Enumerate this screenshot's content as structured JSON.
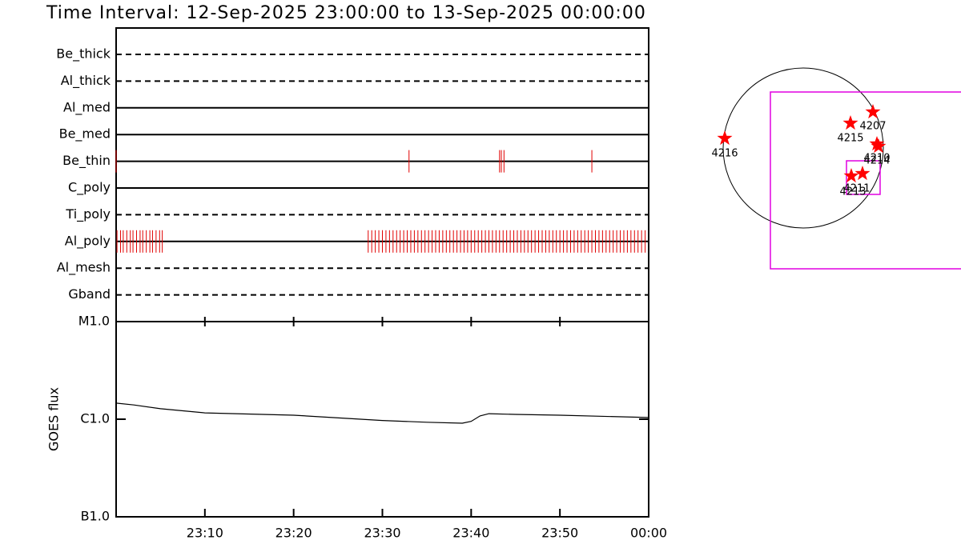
{
  "chart_data": [
    {
      "type": "timeline",
      "title": "Time Interval: 12-Sep-2025 23:00:00 to 13-Sep-2025 00:00:00",
      "xlim": [
        0,
        60
      ],
      "color": "#e00000",
      "rows": [
        {
          "name": "Be_thick",
          "style": "dashed",
          "times": []
        },
        {
          "name": "Al_thick",
          "style": "dashed",
          "times": []
        },
        {
          "name": "Al_med",
          "style": "solid",
          "times": []
        },
        {
          "name": "Be_med",
          "style": "solid",
          "times": []
        },
        {
          "name": "Be_thin",
          "style": "solid",
          "times": [
            0.0,
            33.0,
            43.2,
            43.4,
            43.7,
            53.6
          ]
        },
        {
          "name": "C_poly",
          "style": "solid",
          "times": []
        },
        {
          "name": "Ti_poly",
          "style": "dashed",
          "times": []
        },
        {
          "name": "Al_poly",
          "style": "solid",
          "times": [
            0.1,
            0.5,
            0.8,
            1.2,
            1.6,
            1.9,
            2.3,
            2.7,
            3.0,
            3.4,
            3.8,
            4.1,
            4.5,
            4.9,
            5.2,
            28.4,
            28.8,
            29.2,
            29.6,
            30.0,
            30.4,
            30.8,
            31.2,
            31.6,
            32.0,
            32.4,
            32.8,
            33.2,
            33.6,
            34.0,
            34.4,
            34.8,
            35.2,
            35.6,
            36.0,
            36.4,
            36.8,
            37.2,
            37.6,
            38.0,
            38.4,
            38.8,
            39.2,
            39.6,
            40.0,
            40.4,
            40.8,
            41.2,
            41.6,
            42.0,
            42.4,
            42.8,
            43.2,
            43.6,
            44.0,
            44.4,
            44.8,
            45.2,
            45.6,
            46.0,
            46.4,
            46.8,
            47.2,
            47.6,
            48.0,
            48.4,
            48.8,
            49.2,
            49.6,
            50.0,
            50.4,
            50.8,
            51.2,
            51.6,
            52.0,
            52.4,
            52.8,
            53.2,
            53.6,
            54.0,
            54.4,
            54.8,
            55.2,
            55.6,
            56.0,
            56.4,
            56.8,
            57.2,
            57.6,
            58.0,
            58.4,
            58.8,
            59.2,
            59.6
          ]
        },
        {
          "name": "Al_mesh",
          "style": "dashed",
          "times": []
        },
        {
          "name": "Gband",
          "style": "dashed",
          "times": []
        }
      ]
    },
    {
      "type": "line",
      "ylabel": "GOES flux",
      "x": [
        0,
        2,
        5,
        10,
        20,
        30,
        35,
        39,
        40,
        41,
        42,
        45,
        50,
        60
      ],
      "values": [
        1.46e-06,
        1.4e-06,
        1.28e-06,
        1.16e-06,
        1.1e-06,
        9.7e-07,
        9.3e-07,
        9.1e-07,
        9.5e-07,
        1.08e-06,
        1.14e-06,
        1.12e-06,
        1.1e-06,
        1.04e-06
      ],
      "color": "#000000",
      "xlim": [
        0,
        60
      ],
      "xticks": [
        {
          "value": 10,
          "label": "23:10"
        },
        {
          "value": 20,
          "label": "23:20"
        },
        {
          "value": 30,
          "label": "23:30"
        },
        {
          "value": 40,
          "label": "23:40"
        },
        {
          "value": 50,
          "label": "23:50"
        },
        {
          "value": 60,
          "label": "00:00"
        }
      ],
      "ylim": [
        1e-07,
        1e-05
      ],
      "log_y": true,
      "yticks": [
        {
          "value": 1e-07,
          "label": "B1.0"
        },
        {
          "value": 1e-06,
          "label": "C1.0"
        },
        {
          "value": 1e-05,
          "label": "M1.0"
        }
      ]
    },
    {
      "type": "map",
      "regions": [
        "4216",
        "4215",
        "4207",
        "4210",
        "4214",
        "4211",
        "4213"
      ]
    }
  ]
}
